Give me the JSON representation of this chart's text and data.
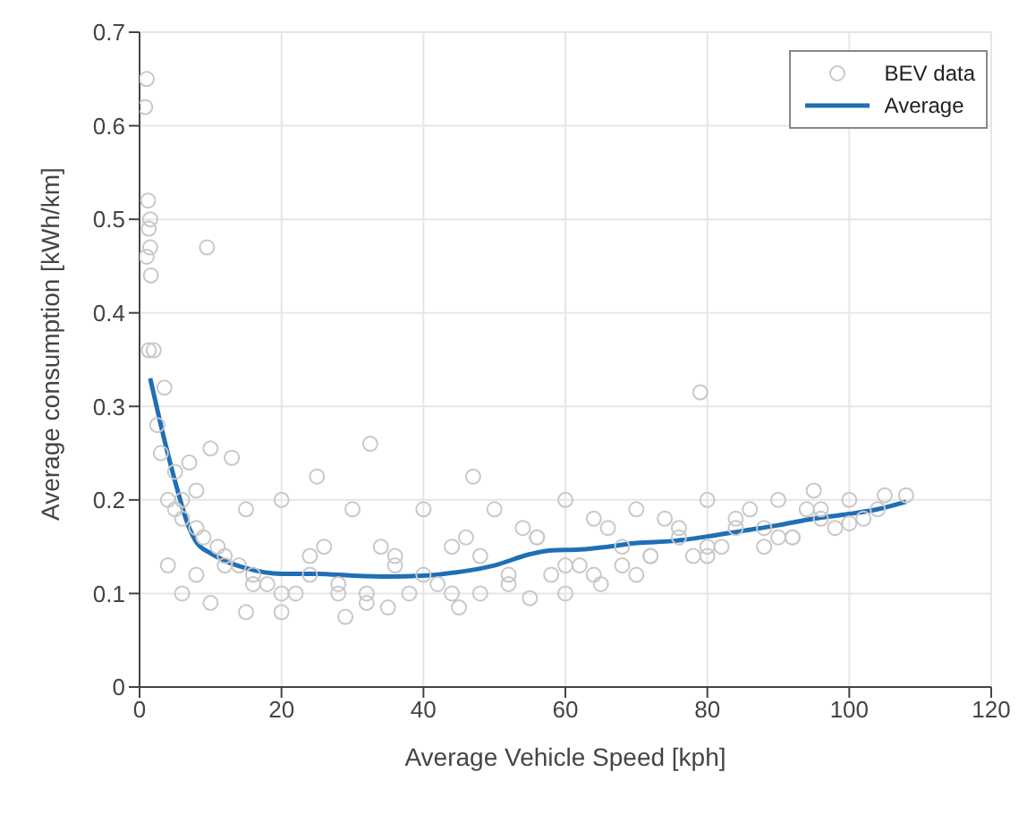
{
  "chart_data": {
    "type": "scatter",
    "xlabel": "Average Vehicle Speed [kph]",
    "ylabel": "Average consumption [kWh/km]",
    "xlim": [
      0,
      120
    ],
    "xticks": [
      0,
      20,
      40,
      60,
      80,
      100,
      120
    ],
    "ylim": [
      0,
      0.7
    ],
    "yticks": [
      0,
      0.1,
      0.2,
      0.3,
      0.4,
      0.5,
      0.6,
      0.7
    ],
    "grid": true,
    "legend": "top right",
    "series": [
      {
        "name": "BEV data",
        "marker": "circle",
        "color": "#c8c8c8",
        "x": [
          1,
          0.8,
          1.2,
          1.5,
          1.3,
          1.5,
          1,
          1.6,
          1.3,
          2,
          9.5,
          3.5,
          2.5,
          10,
          13,
          32.5,
          25,
          79,
          47,
          95,
          5,
          7,
          4,
          8,
          15,
          20,
          30,
          40,
          50,
          60,
          70,
          80,
          90,
          100,
          105,
          108,
          4,
          6,
          10,
          15,
          20,
          29,
          35,
          45,
          55,
          60,
          65,
          70,
          80,
          90,
          100,
          3,
          5,
          6,
          8,
          9,
          11,
          12,
          14,
          16,
          18,
          22,
          24,
          26,
          28,
          32,
          34,
          36,
          38,
          42,
          44,
          46,
          48,
          52,
          54,
          56,
          58,
          62,
          64,
          66,
          68,
          72,
          74,
          76,
          78,
          82,
          84,
          86,
          88,
          92,
          94,
          96,
          98,
          102,
          104,
          6,
          8,
          12,
          16,
          20,
          24,
          28,
          32,
          36,
          40,
          44,
          48,
          52,
          56,
          60,
          64,
          68,
          72,
          76,
          80,
          84,
          88,
          92,
          96
        ],
        "values": [
          0.65,
          0.62,
          0.52,
          0.5,
          0.49,
          0.47,
          0.46,
          0.44,
          0.36,
          0.36,
          0.47,
          0.32,
          0.28,
          0.255,
          0.245,
          0.26,
          0.225,
          0.315,
          0.225,
          0.21,
          0.23,
          0.24,
          0.2,
          0.21,
          0.19,
          0.2,
          0.19,
          0.19,
          0.19,
          0.2,
          0.19,
          0.2,
          0.2,
          0.2,
          0.205,
          0.205,
          0.13,
          0.1,
          0.09,
          0.08,
          0.08,
          0.075,
          0.085,
          0.085,
          0.095,
          0.1,
          0.11,
          0.12,
          0.14,
          0.16,
          0.175,
          0.25,
          0.19,
          0.18,
          0.17,
          0.16,
          0.15,
          0.14,
          0.13,
          0.12,
          0.11,
          0.1,
          0.14,
          0.15,
          0.1,
          0.1,
          0.15,
          0.14,
          0.1,
          0.11,
          0.15,
          0.16,
          0.1,
          0.12,
          0.17,
          0.16,
          0.12,
          0.13,
          0.18,
          0.17,
          0.13,
          0.14,
          0.18,
          0.17,
          0.14,
          0.15,
          0.18,
          0.19,
          0.15,
          0.16,
          0.19,
          0.19,
          0.17,
          0.18,
          0.19,
          0.2,
          0.12,
          0.13,
          0.11,
          0.1,
          0.12,
          0.11,
          0.09,
          0.13,
          0.12,
          0.1,
          0.14,
          0.11,
          0.16,
          0.13,
          0.12,
          0.15,
          0.14,
          0.16,
          0.15,
          0.17,
          0.17,
          0.16,
          0.18
        ]
      },
      {
        "name": "Average",
        "type": "line",
        "marker": "none",
        "line_style": "solid",
        "color": "#1f6fb5",
        "x": [
          1.5,
          3,
          5,
          7,
          8,
          10,
          12,
          15,
          20,
          25,
          30,
          35,
          40,
          45,
          50,
          55,
          58,
          62,
          66,
          70,
          75,
          80,
          85,
          90,
          95,
          100,
          104,
          108
        ],
        "values": [
          0.33,
          0.28,
          0.22,
          0.17,
          0.155,
          0.143,
          0.135,
          0.127,
          0.121,
          0.121,
          0.119,
          0.118,
          0.119,
          0.123,
          0.13,
          0.142,
          0.146,
          0.147,
          0.15,
          0.154,
          0.156,
          0.161,
          0.167,
          0.173,
          0.18,
          0.185,
          0.19,
          0.198
        ]
      }
    ]
  }
}
